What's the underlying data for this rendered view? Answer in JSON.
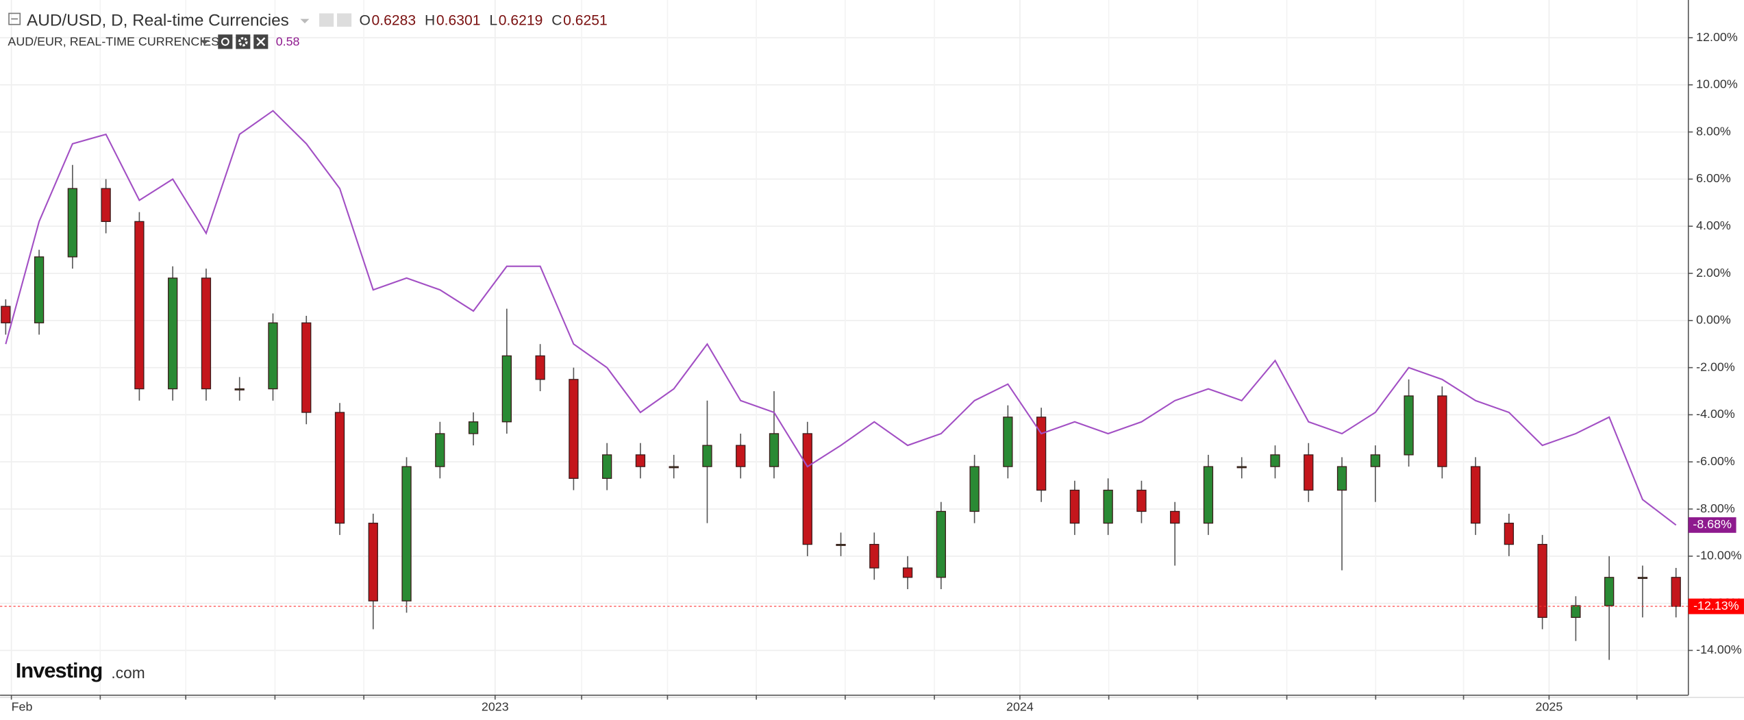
{
  "chart_data": {
    "type": "candlestick",
    "title": "AUD/USD, D, Real-time Currencies",
    "quote": [
      {
        "label": "O",
        "value": 0.6283
      },
      {
        "label": "H",
        "value": 0.6301
      },
      {
        "label": "L",
        "value": 0.6219
      },
      {
        "label": "C",
        "value": 0.6251
      }
    ],
    "candles": {
      "up_color": "#2a8a34",
      "down_color": "#c4161c",
      "last_label": "-12.13%",
      "open": [
        0.6,
        -0.1,
        2.7,
        5.6,
        4.2,
        -2.9,
        1.8,
        -2.9,
        -2.9,
        -0.1,
        -3.9,
        -8.6,
        -11.9,
        -6.2,
        -4.8,
        -4.3,
        -1.5,
        -2.5,
        -6.7,
        -5.7,
        -6.2,
        -6.2,
        -5.3,
        -6.2,
        -4.8,
        -9.5,
        -9.5,
        -10.5,
        -10.9,
        -8.1,
        -6.2,
        -4.1,
        -7.2,
        -8.6,
        -7.2,
        -8.1,
        -8.6,
        -6.2,
        -6.2,
        -5.7,
        -7.2,
        -6.2,
        -5.7,
        -3.2,
        -6.2,
        -8.6,
        -9.5,
        -12.6,
        -12.1,
        -10.9,
        -10.9
      ],
      "high": [
        0.9,
        3.0,
        6.6,
        6.0,
        4.6,
        2.3,
        2.2,
        -2.4,
        0.3,
        0.2,
        -3.5,
        -8.2,
        -5.8,
        -4.3,
        -3.9,
        0.5,
        -1.0,
        -2.0,
        -5.2,
        -5.2,
        -5.7,
        -3.4,
        -4.8,
        -3.0,
        -4.3,
        -9.0,
        -9.0,
        -10.0,
        -7.7,
        -5.7,
        -3.6,
        -3.7,
        -6.8,
        -6.7,
        -6.8,
        -7.7,
        -5.7,
        -5.8,
        -5.3,
        -5.2,
        -5.8,
        -5.3,
        -2.5,
        -2.8,
        -5.8,
        -8.2,
        -9.1,
        -11.7,
        -10.0,
        -10.4,
        -10.5
      ],
      "low": [
        -0.6,
        -0.6,
        2.2,
        3.7,
        -3.4,
        -3.4,
        -3.4,
        -3.4,
        -3.4,
        -4.4,
        -9.1,
        -13.1,
        -12.4,
        -6.7,
        -5.3,
        -4.8,
        -3.0,
        -7.2,
        -7.2,
        -6.7,
        -6.7,
        -8.6,
        -6.7,
        -6.7,
        -10.0,
        -10.0,
        -11.0,
        -11.4,
        -11.4,
        -8.6,
        -6.7,
        -7.7,
        -9.1,
        -9.1,
        -8.6,
        -10.4,
        -9.1,
        -6.7,
        -6.7,
        -7.7,
        -10.6,
        -7.7,
        -6.2,
        -6.7,
        -9.1,
        -10.0,
        -13.1,
        -13.6,
        -14.4,
        -12.6,
        -12.6
      ],
      "close": [
        -0.1,
        2.7,
        5.6,
        4.2,
        -2.9,
        1.8,
        -2.9,
        -2.9,
        -0.1,
        -3.9,
        -8.6,
        -11.9,
        -6.2,
        -4.8,
        -4.3,
        -1.5,
        -2.5,
        -6.7,
        -5.7,
        -6.2,
        -6.2,
        -5.3,
        -6.2,
        -4.8,
        -9.5,
        -9.5,
        -10.5,
        -10.9,
        -8.1,
        -6.2,
        -4.1,
        -7.2,
        -8.6,
        -7.2,
        -8.1,
        -8.6,
        -6.2,
        -6.2,
        -5.7,
        -7.2,
        -6.2,
        -5.7,
        -3.2,
        -6.2,
        -8.6,
        -9.5,
        -12.6,
        -12.1,
        -10.9,
        -10.9,
        -12.13
      ]
    },
    "series": [
      {
        "name": "AUD/EUR, REAL-TIME CURRENCIES",
        "current": 0.58,
        "color": "#a24fc4",
        "label_color": "#8e1a8e",
        "last_label": "-8.68%",
        "values": [
          -1.0,
          4.2,
          7.5,
          7.9,
          5.1,
          6.0,
          3.7,
          7.9,
          8.9,
          7.5,
          5.6,
          1.3,
          1.8,
          1.3,
          0.4,
          2.3,
          2.3,
          -1.0,
          -2.0,
          -3.9,
          -2.9,
          -1.0,
          -3.4,
          -3.9,
          -6.2,
          -5.3,
          -4.3,
          -5.3,
          -4.8,
          -3.4,
          -2.7,
          -4.8,
          -4.3,
          -4.8,
          -4.3,
          -3.4,
          -2.9,
          -3.4,
          -1.7,
          -4.3,
          -4.8,
          -3.9,
          -2.0,
          -2.5,
          -3.4,
          -3.9,
          -5.3,
          -4.8,
          -4.1,
          -7.6,
          -8.68
        ]
      }
    ],
    "xlim": [
      -0.17,
      50.37
    ],
    "xticks": [
      {
        "value": 0.17,
        "label": "Feb"
      },
      {
        "value": 14.65,
        "label": "2023"
      },
      {
        "value": 30.36,
        "label": "2024"
      },
      {
        "value": 46.2,
        "label": "2025"
      }
    ],
    "xminorticks": [
      2.83,
      5.39,
      8.06,
      10.72,
      17.24,
      19.81,
      22.47,
      25.13,
      27.8,
      33.02,
      35.68,
      38.35,
      41.01,
      43.64,
      48.83
    ],
    "ylim": [
      -15.9,
      13.6
    ],
    "yticks": [
      {
        "value": 12,
        "label": "12.00%"
      },
      {
        "value": 10,
        "label": "10.00%"
      },
      {
        "value": 8,
        "label": "8.00%"
      },
      {
        "value": 6,
        "label": "6.00%"
      },
      {
        "value": 4,
        "label": "4.00%"
      },
      {
        "value": 2,
        "label": "2.00%"
      },
      {
        "value": 0,
        "label": "0.00%"
      },
      {
        "value": -2,
        "label": "-2.00%"
      },
      {
        "value": -4,
        "label": "-4.00%"
      },
      {
        "value": -6,
        "label": "-6.00%"
      },
      {
        "value": -8,
        "label": "-8.00%"
      },
      {
        "value": -10,
        "label": "-10.00%"
      },
      {
        "value": -12,
        "label": "-12.00%"
      },
      {
        "value": -14,
        "label": "-14.00%"
      }
    ],
    "grid": true,
    "logo": {
      "brand": "Investing",
      "suffix": ".com"
    }
  }
}
